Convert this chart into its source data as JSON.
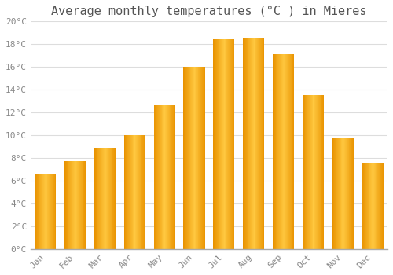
{
  "title": "Average monthly temperatures (°C ) in Mieres",
  "months": [
    "Jan",
    "Feb",
    "Mar",
    "Apr",
    "May",
    "Jun",
    "Jul",
    "Aug",
    "Sep",
    "Oct",
    "Nov",
    "Dec"
  ],
  "values": [
    6.6,
    7.7,
    8.8,
    10.0,
    12.7,
    16.0,
    18.4,
    18.5,
    17.1,
    13.5,
    9.8,
    7.6
  ],
  "bar_color_center": "#FFB733",
  "bar_color_edge": "#F5A000",
  "ylim": [
    0,
    20
  ],
  "yticks": [
    0,
    2,
    4,
    6,
    8,
    10,
    12,
    14,
    16,
    18,
    20
  ],
  "background_color": "#FFFFFF",
  "grid_color": "#DDDDDD",
  "title_fontsize": 11,
  "tick_fontsize": 8,
  "font_family": "monospace",
  "title_color": "#555555",
  "tick_color": "#888888"
}
